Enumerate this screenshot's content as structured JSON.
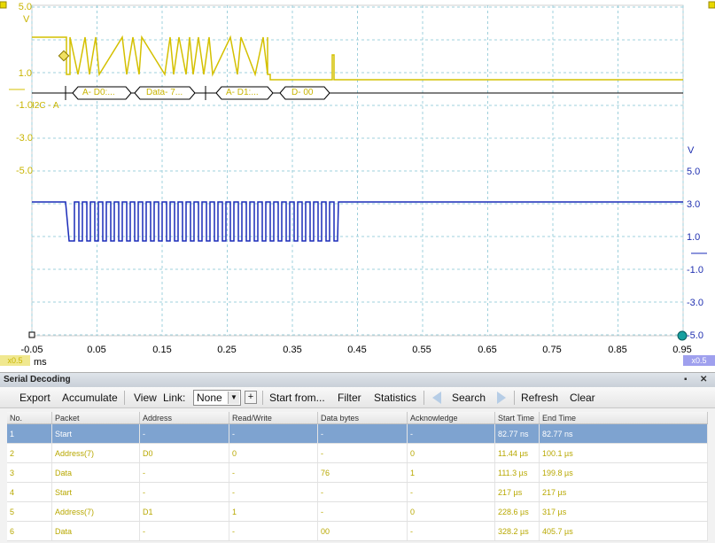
{
  "scope": {
    "channel_a_unit": "V",
    "channel_b_unit": "V",
    "channel_a_ticks": [
      "5.0",
      "1.0",
      "-1.0",
      "-3.0",
      "-5.0"
    ],
    "channel_b_ticks": [
      "5.0",
      "3.0",
      "1.0",
      "-1.0",
      "-3.0",
      "-5.0"
    ],
    "x_ticks": [
      "-0.05",
      "0.05",
      "0.15",
      "0.25",
      "0.35",
      "0.45",
      "0.55",
      "0.65",
      "0.75",
      "0.85",
      "0.95"
    ],
    "x_unit": "ms",
    "zoom_a": "x0.5",
    "zoom_b": "x0.5",
    "decode_channel_label": "I2C - A",
    "decode_packets": [
      "A- D0:...",
      "Data- 7...",
      "A- D1:...",
      "D- 00"
    ],
    "colors": {
      "channel_a": "#d4c000",
      "channel_b": "#1a2bb8",
      "decode": "#c8b400",
      "grid": "#9fd0dc"
    }
  },
  "panel": {
    "title": "Serial Decoding",
    "toolbar": {
      "export": "Export",
      "accumulate": "Accumulate",
      "view": "View",
      "link_label": "Link:",
      "link_value": "None",
      "plus": "+",
      "start_from": "Start from...",
      "filter": "Filter",
      "statistics": "Statistics",
      "search": "Search",
      "refresh": "Refresh",
      "clear": "Clear"
    },
    "columns": [
      "No.",
      "Packet",
      "Address",
      "Read/Write",
      "Data bytes",
      "Acknowledge",
      "Start Time",
      "End Time"
    ],
    "rows": [
      [
        "1",
        "Start",
        "-",
        "-",
        "-",
        "-",
        "82.77 ns",
        "82.77 ns"
      ],
      [
        "2",
        "Address(7)",
        "D0",
        "0",
        "-",
        "0",
        "11.44 µs",
        "100.1 µs"
      ],
      [
        "3",
        "Data",
        "-",
        "-",
        "76",
        "1",
        "111.3 µs",
        "199.8 µs"
      ],
      [
        "4",
        "Start",
        "-",
        "-",
        "-",
        "-",
        "217 µs",
        "217 µs"
      ],
      [
        "5",
        "Address(7)",
        "D1",
        "1",
        "-",
        "0",
        "228.6 µs",
        "317 µs"
      ],
      [
        "6",
        "Data",
        "-",
        "-",
        "00",
        "-",
        "328.2 µs",
        "405.7 µs"
      ]
    ]
  }
}
